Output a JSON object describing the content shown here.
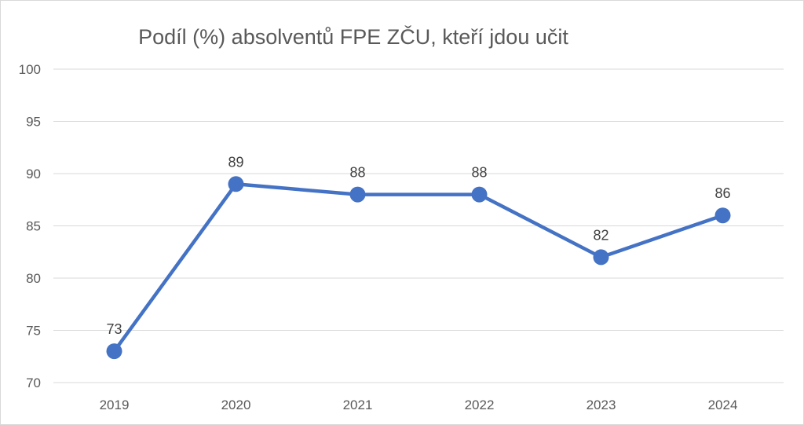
{
  "chart_data": {
    "type": "line",
    "title": "Podíl (%) absolventů FPE ZČU, kteří jdou učit",
    "categories": [
      "2019",
      "2020",
      "2021",
      "2022",
      "2023",
      "2024"
    ],
    "series": [
      {
        "values": [
          73,
          89,
          88,
          88,
          82,
          86
        ],
        "color": "#4472c4"
      }
    ],
    "data_labels": [
      "73",
      "89",
      "88",
      "88",
      "82",
      "86"
    ],
    "ylim": [
      70,
      100
    ],
    "yticks": [
      70,
      75,
      80,
      85,
      90,
      95,
      100
    ],
    "ytick_labels": [
      "70",
      "75",
      "80",
      "85",
      "90",
      "95",
      "100"
    ],
    "grid": true,
    "legend": false
  }
}
